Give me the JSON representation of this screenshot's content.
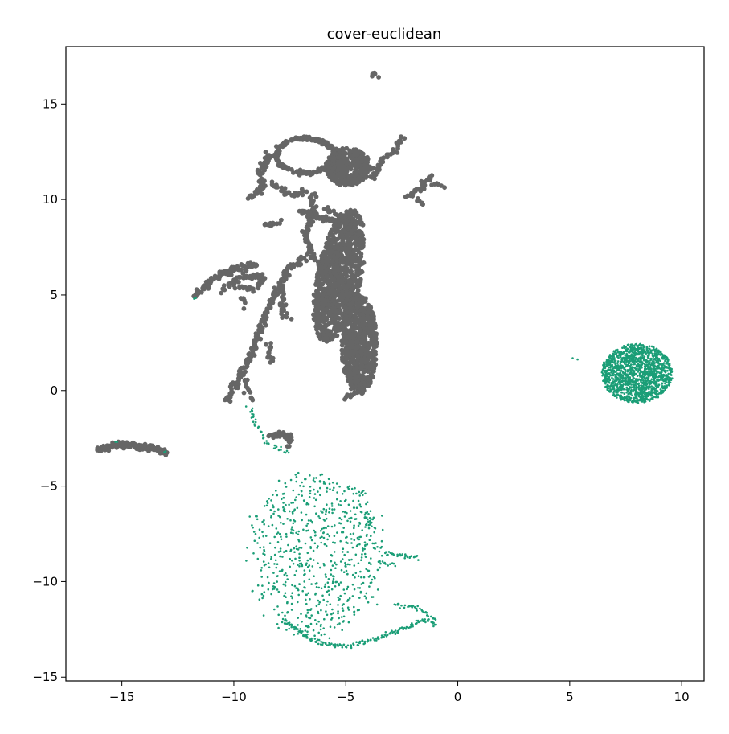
{
  "chart_data": {
    "type": "scatter",
    "title": "cover-euclidean",
    "xlabel": "",
    "ylabel": "",
    "xlim": [
      -17.5,
      11.0
    ],
    "ylim": [
      -15.2,
      18.0
    ],
    "x_ticks": [
      -15,
      -10,
      -5,
      0,
      5,
      10
    ],
    "x_tick_labels": [
      "−15",
      "−10",
      "−5",
      "0",
      "5",
      "10"
    ],
    "y_ticks": [
      -15,
      -10,
      -5,
      0,
      5,
      10,
      15
    ],
    "y_tick_labels": [
      "−15",
      "−10",
      "−5",
      "0",
      "5",
      "10",
      "15"
    ],
    "grid": false,
    "legend": "none",
    "series": [
      {
        "color": "#666666",
        "marker_size": "large",
        "clusters": [
          {
            "shape": "blob",
            "cx": -5.3,
            "cy": 6.0,
            "rx": 1.0,
            "ry": 3.5,
            "rot": -10,
            "n": 900
          },
          {
            "shape": "blob",
            "cx": -4.4,
            "cy": 2.4,
            "rx": 0.8,
            "ry": 2.6,
            "rot": 0,
            "n": 700
          },
          {
            "shape": "blob",
            "cx": -4.9,
            "cy": 11.7,
            "rx": 1.0,
            "ry": 1.0,
            "rot": 0,
            "n": 350
          },
          {
            "shape": "ring",
            "cx": -6.8,
            "cy": 12.3,
            "rx": 1.3,
            "ry": 0.9,
            "n": 220
          },
          {
            "shape": "curve",
            "pts": [
              [
                -8.4,
                12.4
              ],
              [
                -8.8,
                11.4
              ],
              [
                -8.7,
                10.6
              ],
              [
                -9.3,
                10.2
              ]
            ],
            "n": 60
          },
          {
            "shape": "curve",
            "pts": [
              [
                -8.3,
                10.8
              ],
              [
                -7.5,
                10.2
              ],
              [
                -6.8,
                10.4
              ]
            ],
            "n": 30
          },
          {
            "shape": "curve",
            "pts": [
              [
                -6.5,
                10.3
              ],
              [
                -6.5,
                9.0
              ],
              [
                -6.8,
                8.2
              ],
              [
                -6.5,
                7.0
              ],
              [
                -5.8,
                6.0
              ]
            ],
            "n": 90
          },
          {
            "shape": "curve",
            "pts": [
              [
                -7.0,
                9.4
              ],
              [
                -6.0,
                9.0
              ],
              [
                -5.2,
                8.9
              ]
            ],
            "n": 40
          },
          {
            "shape": "curve",
            "pts": [
              [
                -8.0,
                8.8
              ],
              [
                -8.6,
                8.6
              ]
            ],
            "n": 15
          },
          {
            "shape": "curve",
            "pts": [
              [
                -6.8,
                7.0
              ],
              [
                -7.5,
                6.4
              ],
              [
                -8.2,
                5.0
              ],
              [
                -8.7,
                3.5
              ],
              [
                -9.2,
                2.0
              ],
              [
                -9.6,
                1.0
              ],
              [
                -10.0,
                0.2
              ],
              [
                -10.3,
                -0.5
              ]
            ],
            "n": 180
          },
          {
            "shape": "curve",
            "pts": [
              [
                -7.9,
                5.2
              ],
              [
                -7.8,
                4.1
              ],
              [
                -7.6,
                3.8
              ]
            ],
            "n": 25
          },
          {
            "shape": "curve",
            "pts": [
              [
                -8.5,
                2.5
              ],
              [
                -8.3,
                1.5
              ]
            ],
            "n": 15
          },
          {
            "shape": "curve",
            "pts": [
              [
                -9.5,
                0.6
              ],
              [
                -9.2,
                -0.5
              ]
            ],
            "n": 12
          },
          {
            "shape": "curve",
            "pts": [
              [
                -6.0,
                9.5
              ],
              [
                -5.2,
                9.2
              ],
              [
                -4.5,
                7.8
              ]
            ],
            "n": 40
          },
          {
            "shape": "curve",
            "pts": [
              [
                -5.8,
                6.0
              ],
              [
                -5.6,
                4.6
              ],
              [
                -5.5,
                3.6
              ]
            ],
            "n": 40
          },
          {
            "shape": "curve",
            "pts": [
              [
                -4.6,
                1.6
              ],
              [
                -4.4,
                0.0
              ],
              [
                -5.0,
                -0.4
              ]
            ],
            "n": 40
          },
          {
            "shape": "curve",
            "pts": [
              [
                -4.0,
                11.6
              ],
              [
                -3.8,
                11.7
              ]
            ],
            "n": 6
          },
          {
            "shape": "curve",
            "pts": [
              [
                -3.8,
                11.0
              ],
              [
                -3.4,
                12.0
              ],
              [
                -2.5,
                13.0
              ],
              [
                -2.4,
                13.3
              ]
            ],
            "n": 40
          },
          {
            "shape": "curve",
            "pts": [
              [
                -2.2,
                10.2
              ],
              [
                -1.6,
                10.6
              ],
              [
                -1.2,
                11.2
              ]
            ],
            "n": 25
          },
          {
            "shape": "curve",
            "pts": [
              [
                -1.8,
                10.1
              ],
              [
                -1.6,
                9.7
              ]
            ],
            "n": 6
          },
          {
            "shape": "curve",
            "pts": [
              [
                -1.1,
                10.9
              ],
              [
                -0.8,
                10.6
              ]
            ],
            "n": 6
          },
          {
            "shape": "curve",
            "pts": [
              [
                -11.7,
                4.9
              ],
              [
                -11.0,
                5.8
              ],
              [
                -10.4,
                6.2
              ],
              [
                -9.5,
                6.5
              ],
              [
                -9.0,
                6.6
              ]
            ],
            "n": 80
          },
          {
            "shape": "curve",
            "pts": [
              [
                -10.5,
                5.3
              ],
              [
                -9.6,
                6.0
              ],
              [
                -8.6,
                6.0
              ]
            ],
            "n": 40
          },
          {
            "shape": "curve",
            "pts": [
              [
                -10.0,
                5.5
              ],
              [
                -9.2,
                5.3
              ],
              [
                -8.6,
                5.8
              ]
            ],
            "n": 30
          },
          {
            "shape": "curve",
            "pts": [
              [
                -9.7,
                4.8
              ],
              [
                -9.5,
                4.5
              ]
            ],
            "n": 6
          },
          {
            "shape": "curve",
            "pts": [
              [
                -10.0,
                6.5
              ],
              [
                -10.2,
                6.0
              ]
            ],
            "n": 10
          },
          {
            "shape": "curve",
            "pts": [
              [
                -16.2,
                -3.1
              ],
              [
                -15.5,
                -2.95
              ],
              [
                -15.0,
                -2.8
              ],
              [
                -14.5,
                -2.9
              ],
              [
                -13.5,
                -3.0
              ],
              [
                -13.0,
                -3.3
              ]
            ],
            "n": 120
          },
          {
            "shape": "curve",
            "pts": [
              [
                -8.4,
                -2.3
              ],
              [
                -7.6,
                -2.3
              ],
              [
                -7.5,
                -2.8
              ]
            ],
            "n": 30
          },
          {
            "shape": "curve",
            "pts": [
              [
                -3.8,
                16.5
              ],
              [
                -3.7,
                16.45
              ]
            ],
            "n": 6
          }
        ]
      },
      {
        "color": "#1b9e77",
        "marker_size": "small",
        "clusters": [
          {
            "shape": "blob",
            "cx": 8.0,
            "cy": 0.9,
            "rx": 1.6,
            "ry": 1.55,
            "rot": 0,
            "n": 1500
          },
          {
            "shape": "web",
            "cx": -6.3,
            "cy": -8.6,
            "rx": 3.0,
            "ry": 4.3,
            "n": 700
          },
          {
            "shape": "curve",
            "pts": [
              [
                -9.3,
                -0.8
              ],
              [
                -9.0,
                -1.8
              ],
              [
                -8.6,
                -2.6
              ],
              [
                -8.1,
                -3.0
              ],
              [
                -7.6,
                -3.3
              ]
            ],
            "n": 40
          },
          {
            "shape": "curve",
            "pts": [
              [
                -7.8,
                -12.0
              ],
              [
                -6.5,
                -13.1
              ],
              [
                -5.0,
                -13.4
              ],
              [
                -3.6,
                -13.0
              ],
              [
                -2.5,
                -12.5
              ],
              [
                -1.5,
                -12.0
              ],
              [
                -1.1,
                -12.1
              ]
            ],
            "n": 180
          },
          {
            "shape": "curve",
            "pts": [
              [
                -4.2,
                -6.5
              ],
              [
                -3.8,
                -7.2
              ]
            ],
            "n": 12
          },
          {
            "shape": "curve",
            "pts": [
              [
                -3.2,
                -8.5
              ],
              [
                -2.5,
                -8.7
              ],
              [
                -1.8,
                -8.7
              ]
            ],
            "n": 30
          },
          {
            "shape": "curve",
            "pts": [
              [
                -3.6,
                -9.0
              ],
              [
                -2.8,
                -9.1
              ]
            ],
            "n": 12
          },
          {
            "shape": "curve",
            "pts": [
              [
                -2.8,
                -11.2
              ],
              [
                -2.0,
                -11.3
              ],
              [
                -1.1,
                -11.9
              ],
              [
                -1.0,
                -12.3
              ]
            ],
            "n": 40
          },
          {
            "shape": "curve",
            "pts": [
              [
                -4.5,
                -5.4
              ],
              [
                -4.1,
                -5.4
              ]
            ],
            "n": 6
          },
          {
            "shape": "curve",
            "pts": [
              [
                5.2,
                1.6
              ],
              [
                5.25,
                1.6
              ]
            ],
            "n": 2
          },
          {
            "shape": "curve",
            "pts": [
              [
                -11.8,
                4.9
              ],
              [
                -11.7,
                4.9
              ]
            ],
            "n": 2
          },
          {
            "shape": "curve",
            "pts": [
              [
                -15.2,
                -2.7
              ],
              [
                -15.1,
                -2.7
              ]
            ],
            "n": 2
          },
          {
            "shape": "curve",
            "pts": [
              [
                -13.1,
                -3.2
              ],
              [
                -13.0,
                -3.25
              ]
            ],
            "n": 2
          }
        ]
      }
    ]
  }
}
